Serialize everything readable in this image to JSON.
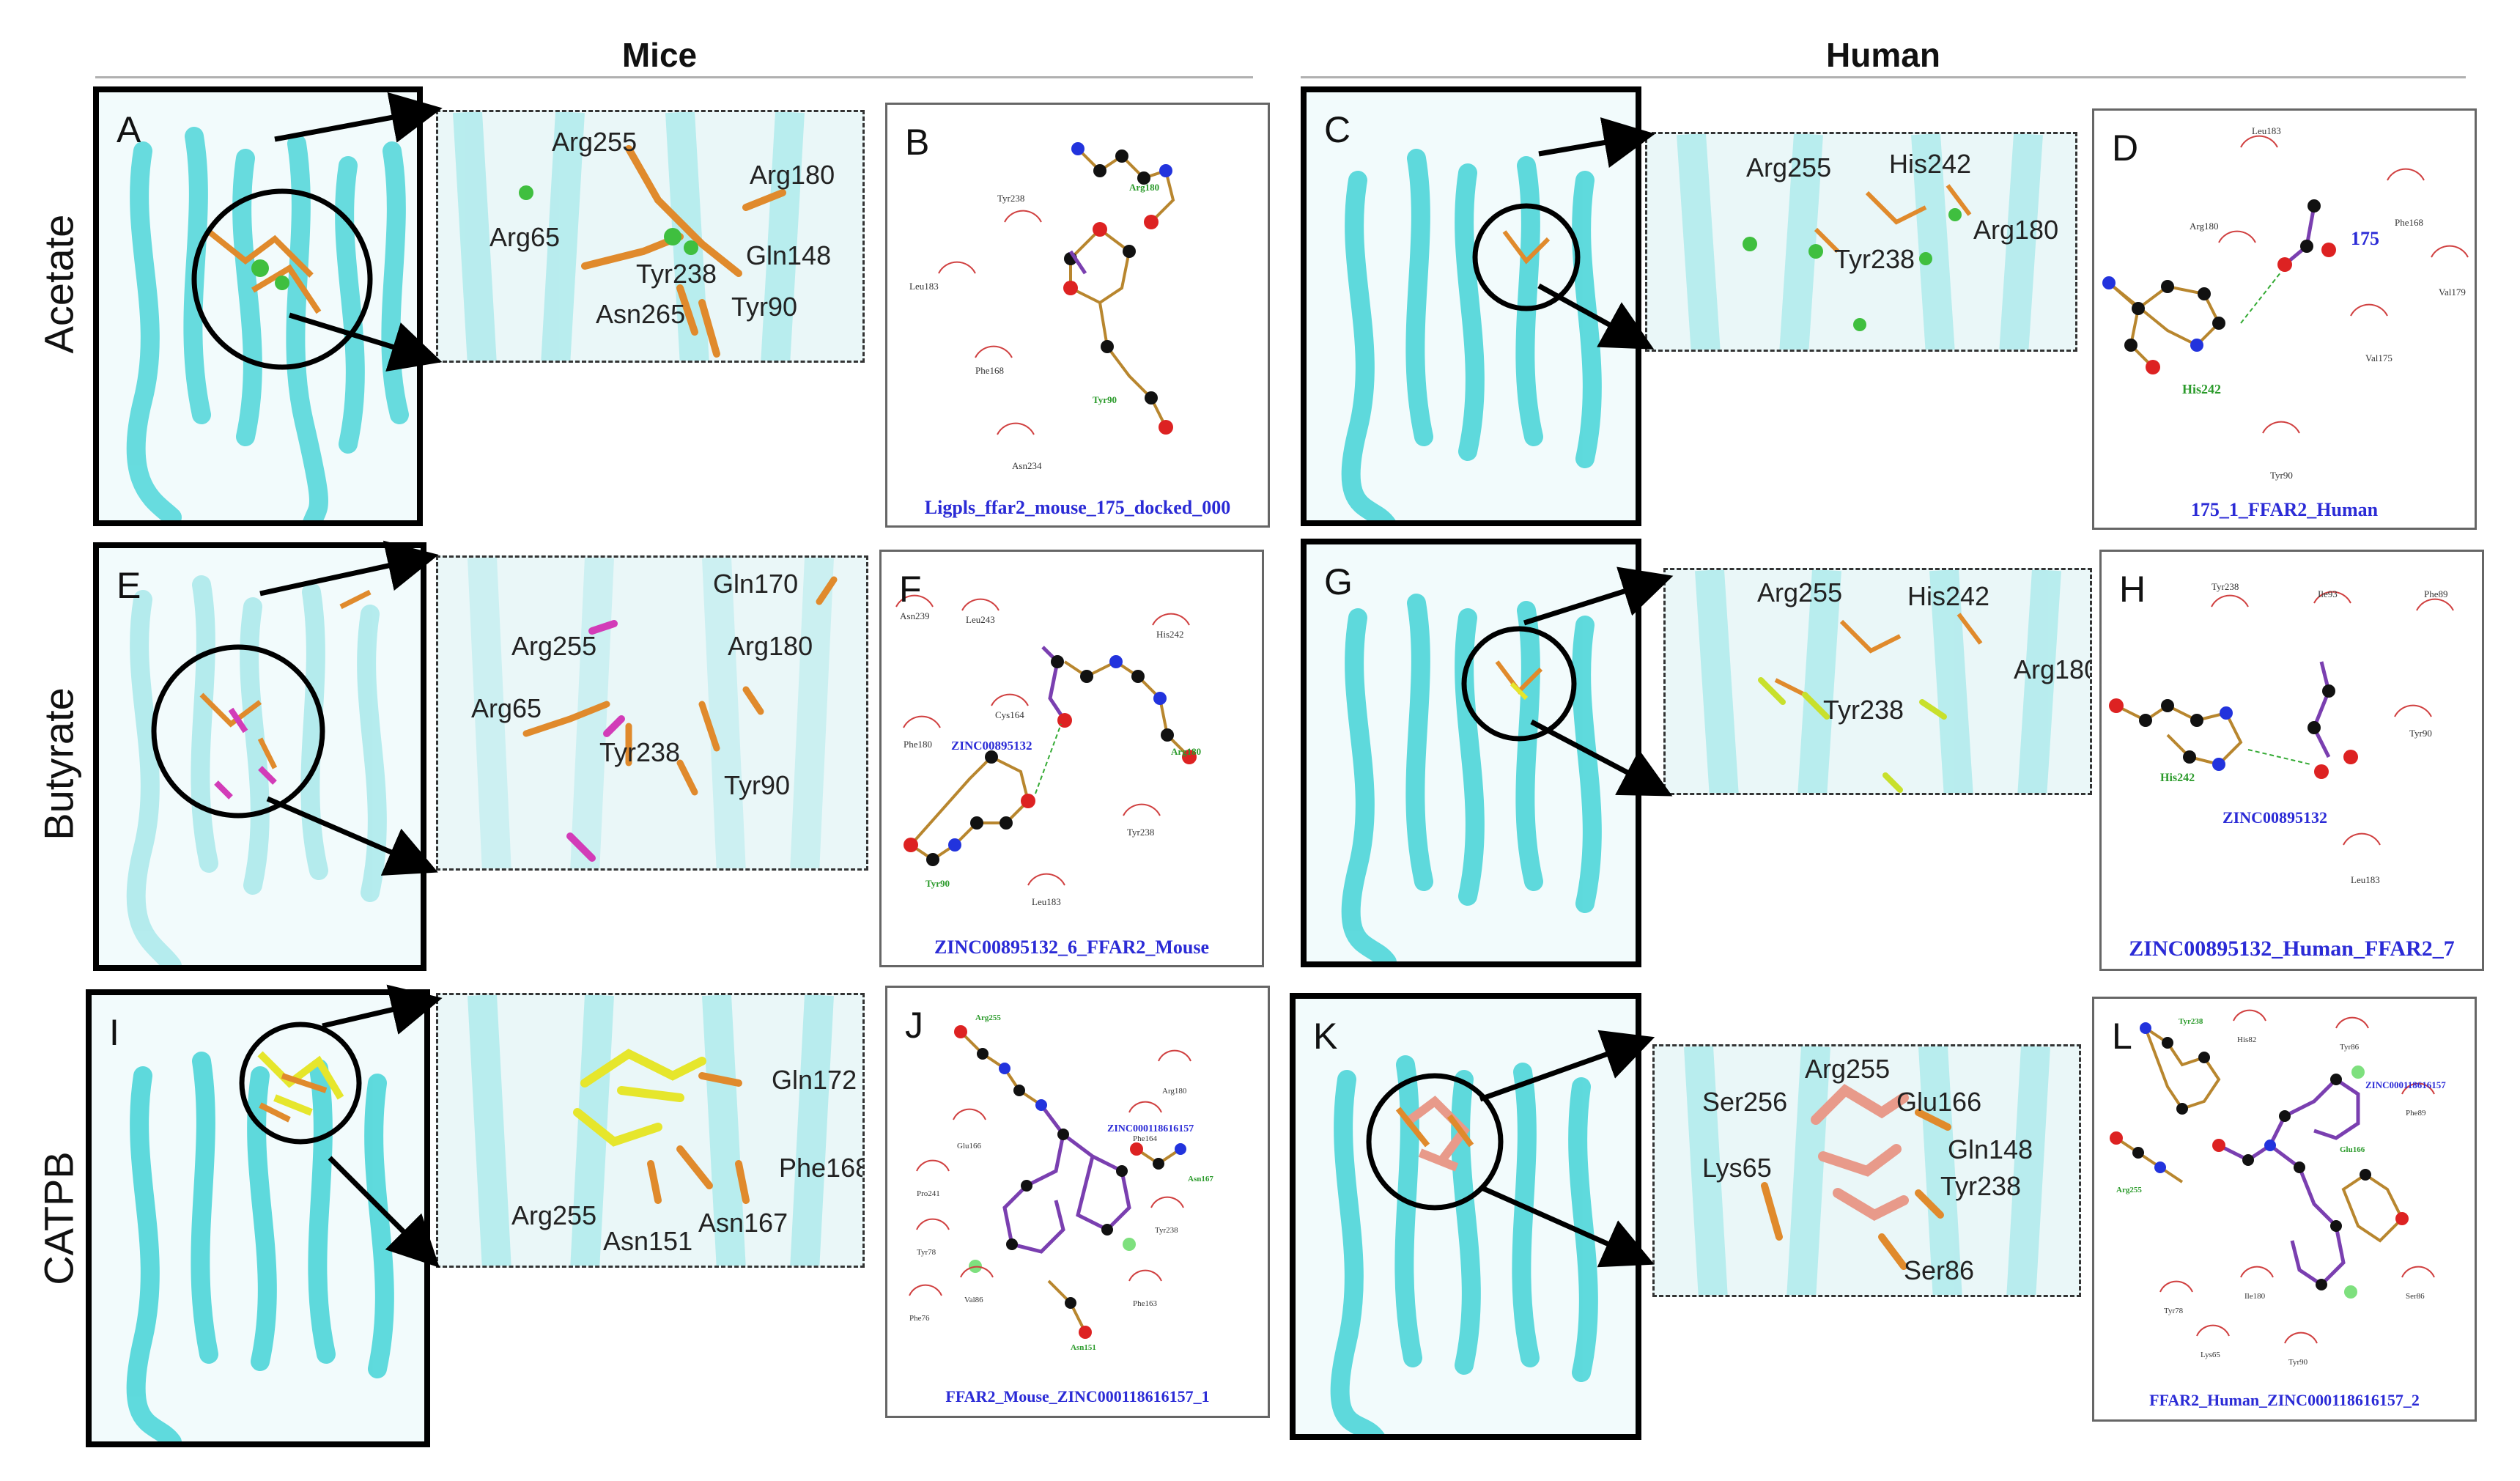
{
  "columns": {
    "mice": "Mice",
    "human": "Human"
  },
  "rows": {
    "acetate": "Acetate",
    "butyrate": "Butyrate",
    "catpb": "CATPB"
  },
  "panel_letters": [
    "A",
    "B",
    "C",
    "D",
    "E",
    "F",
    "G",
    "H",
    "I",
    "J",
    "K",
    "L"
  ],
  "zoom_labels": {
    "A": [
      "Arg255",
      "Arg180",
      "Arg65",
      "Gln148",
      "Tyr238",
      "Asn265",
      "Tyr90"
    ],
    "C": [
      "Arg255",
      "His242",
      "Arg180",
      "Tyr238"
    ],
    "E": [
      "Gln170",
      "Arg255",
      "Arg180",
      "Arg65",
      "Tyr238",
      "Tyr90"
    ],
    "G": [
      "Arg255",
      "His242",
      "Arg180",
      "Tyr238"
    ],
    "I": [
      "Gln172",
      "Phe168",
      "Arg255",
      "Asn151",
      "Asn167"
    ],
    "K": [
      "Arg255",
      "Ser256",
      "Glu166",
      "Gln148",
      "Lys65",
      "Tyr238",
      "Ser86"
    ]
  },
  "ligplot": {
    "B": {
      "caption": "Ligpls_ffar2_mouse_175_docked_000",
      "residues": [
        "Leu183",
        "Tyr238",
        "Phe168",
        "Asn234"
      ],
      "hbond_residues": [
        "Arg180",
        "Tyr90"
      ]
    },
    "D": {
      "caption": "175_1_FFAR2_Human",
      "molecule": "175",
      "residues": [
        "Leu183",
        "Phe168",
        "Arg180",
        "Val179",
        "Val175",
        "Tyr90"
      ],
      "hbond_residues": [
        "His242"
      ]
    },
    "F": {
      "caption": "ZINC00895132_6_FFAR2_Mouse",
      "molecule": "ZINC00895132",
      "residues": [
        "Asn239",
        "Leu243",
        "His242",
        "Cys164",
        "Phe180",
        "Tyr238",
        "Leu183"
      ],
      "hbond_residues": [
        "Arg180",
        "Tyr90"
      ]
    },
    "H": {
      "caption": "ZINC00895132_Human_FFAR2_7",
      "molecule": "ZINC00895132",
      "residues": [
        "Tyr238",
        "Ile93",
        "Phe89",
        "Tyr90",
        "Leu183"
      ],
      "hbond_residues": [
        "His242"
      ]
    },
    "J": {
      "caption": "FFAR2_Mouse_ZINC000118616157_1",
      "molecule": "ZINC000118616157",
      "residues": [
        "Arg180",
        "Glu166",
        "Phe164",
        "Pro241",
        "Tyr238",
        "Tyr78",
        "Val86",
        "Phe163",
        "Phe76"
      ],
      "hbond_residues": [
        "Arg255",
        "Asn167",
        "Asn151"
      ]
    },
    "L": {
      "caption": "FFAR2_Human_ZINC000118616157_2",
      "molecule": "ZINC000118616157",
      "residues": [
        "His82",
        "Tyr86",
        "Phe89",
        "Ile180",
        "Ser86",
        "Lys65",
        "Tyr90",
        "Tyr78"
      ],
      "hbond_residues": [
        "Tyr238",
        "Arg255",
        "Glu166"
      ]
    }
  },
  "colors": {
    "protein_cyan": "#4fd6d9",
    "residue_orange": "#e08a2c",
    "acetate_green": "#3fbf3f",
    "butyrate_magenta": "#d23cb8",
    "catpb_yellow": "#e6e62c",
    "catpb_salmon": "#e89a8a",
    "caption_blue": "#2b2bd6"
  }
}
